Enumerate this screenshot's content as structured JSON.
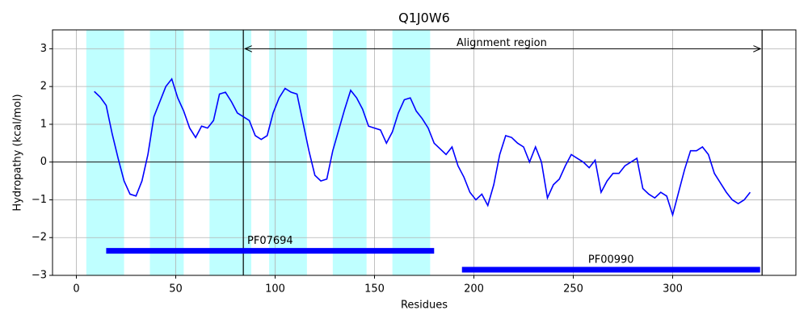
{
  "chart_data": {
    "type": "line",
    "title": "Q1J0W6",
    "x_label": "Residues",
    "y_label": "Hydropathy (kcal/mol)",
    "x": [
      9,
      12,
      15,
      18,
      21,
      24,
      27,
      30,
      33,
      36,
      39,
      42,
      45,
      48,
      51,
      54,
      57,
      60,
      63,
      66,
      69,
      72,
      75,
      78,
      81,
      84,
      87,
      90,
      93,
      96,
      99,
      102,
      105,
      108,
      111,
      114,
      117,
      120,
      123,
      126,
      129,
      132,
      135,
      138,
      141,
      144,
      147,
      150,
      153,
      156,
      159,
      162,
      165,
      168,
      171,
      174,
      177,
      180,
      183,
      186,
      189,
      192,
      195,
      198,
      201,
      204,
      207,
      210,
      213,
      216,
      219,
      222,
      225,
      228,
      231,
      234,
      237,
      240,
      243,
      246,
      249,
      252,
      255,
      258,
      261,
      264,
      267,
      270,
      273,
      276,
      279,
      282,
      285,
      288,
      291,
      294,
      297,
      300,
      303,
      306,
      309,
      312,
      315,
      318,
      321,
      324,
      327,
      330,
      333,
      336,
      339
    ],
    "series": [
      {
        "name": "Hydropathy",
        "color": "#0000ff",
        "values": [
          1.87,
          1.72,
          1.5,
          0.75,
          0.1,
          -0.5,
          -0.85,
          -0.9,
          -0.5,
          0.2,
          1.2,
          1.6,
          2.0,
          2.2,
          1.7,
          1.35,
          0.9,
          0.65,
          0.95,
          0.9,
          1.1,
          1.8,
          1.85,
          1.6,
          1.3,
          1.2,
          1.1,
          0.7,
          0.6,
          0.7,
          1.3,
          1.7,
          1.95,
          1.85,
          1.8,
          1.05,
          0.3,
          -0.35,
          -0.5,
          -0.45,
          0.3,
          0.85,
          1.4,
          1.9,
          1.7,
          1.4,
          0.95,
          0.9,
          0.85,
          0.5,
          0.8,
          1.3,
          1.65,
          1.7,
          1.35,
          1.15,
          0.9,
          0.5,
          0.35,
          0.2,
          0.4,
          -0.1,
          -0.4,
          -0.8,
          -1.0,
          -0.85,
          -1.15,
          -0.6,
          0.2,
          0.7,
          0.65,
          0.5,
          0.4,
          0.0,
          0.4,
          0.0,
          -0.95,
          -0.6,
          -0.45,
          -0.1,
          0.2,
          0.1,
          0.0,
          -0.15,
          0.05,
          -0.8,
          -0.5,
          -0.3,
          -0.3,
          -0.1,
          0.0,
          0.1,
          -0.7,
          -0.85,
          -0.95,
          -0.8,
          -0.9,
          -1.4,
          -0.8,
          -0.2,
          0.3,
          0.3,
          0.4,
          0.2,
          -0.3,
          -0.55,
          -0.8,
          -1.0,
          -1.1,
          -1.0,
          -0.8
        ]
      }
    ],
    "regions": [
      [
        5,
        24
      ],
      [
        37,
        54
      ],
      [
        67,
        88
      ],
      [
        97,
        116
      ],
      [
        129,
        146
      ],
      [
        159,
        178
      ]
    ],
    "region_color": "#bfffff",
    "vlines": [
      84,
      345
    ],
    "annotation": {
      "text": "Alignment region",
      "x": 214,
      "y": 3.15,
      "arrow_from": 84,
      "arrow_to": 345,
      "arrow_y": 3
    },
    "domains": [
      {
        "name": "PF07694",
        "start": 15,
        "end": 180,
        "y": -2.35
      },
      {
        "name": "PF00990",
        "start": 194,
        "end": 344,
        "y": -2.85
      }
    ],
    "domain_color": "#0000ff",
    "xlim": [
      -12,
      362
    ],
    "ylim": [
      -3,
      3.5
    ],
    "xticks": [
      0,
      50,
      100,
      150,
      200,
      250,
      300
    ],
    "yticks": [
      {
        "value": -3,
        "label": "−3"
      },
      {
        "value": -2,
        "label": "−2"
      },
      {
        "value": -1,
        "label": "−1"
      },
      0,
      1,
      2,
      3
    ],
    "grid": true
  }
}
